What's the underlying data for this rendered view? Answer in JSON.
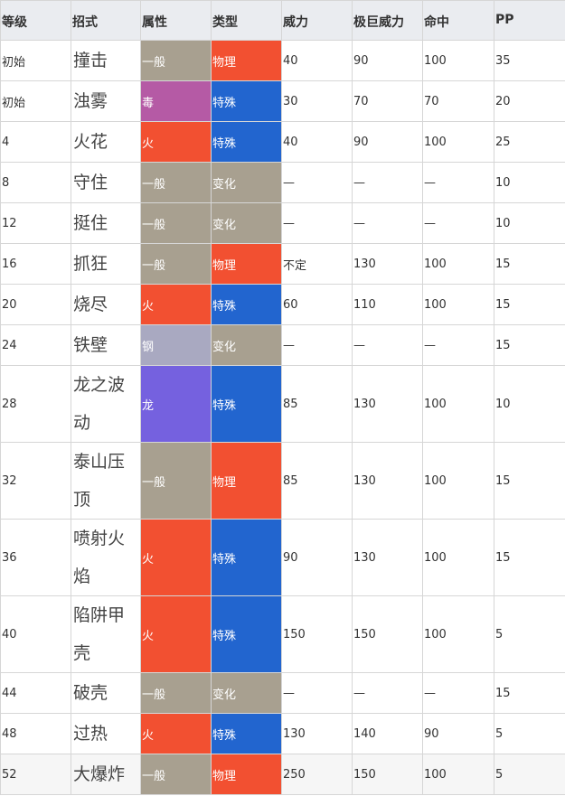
{
  "headers": [
    "等级",
    "招式",
    "属性",
    "类型",
    "威力",
    "极巨威力",
    "命中",
    "PP"
  ],
  "rows": [
    {
      "level": "初始",
      "move": "撞击",
      "type": "一般",
      "type_key": "normal",
      "category": "物理",
      "cat_key": "physical",
      "power": "40",
      "max_power": "90",
      "accuracy": "100",
      "pp": "35"
    },
    {
      "level": "初始",
      "move": "浊雾",
      "type": "毒",
      "type_key": "poison",
      "category": "特殊",
      "cat_key": "special",
      "power": "30",
      "max_power": "70",
      "accuracy": "70",
      "pp": "20"
    },
    {
      "level": "4",
      "move": "火花",
      "type": "火",
      "type_key": "fire",
      "category": "特殊",
      "cat_key": "special",
      "power": "40",
      "max_power": "90",
      "accuracy": "100",
      "pp": "25"
    },
    {
      "level": "8",
      "move": "守住",
      "type": "一般",
      "type_key": "normal",
      "category": "变化",
      "cat_key": "status",
      "power": "—",
      "max_power": "—",
      "accuracy": "—",
      "pp": "10"
    },
    {
      "level": "12",
      "move": "挺住",
      "type": "一般",
      "type_key": "normal",
      "category": "变化",
      "cat_key": "status",
      "power": "—",
      "max_power": "—",
      "accuracy": "—",
      "pp": "10"
    },
    {
      "level": "16",
      "move": "抓狂",
      "type": "一般",
      "type_key": "normal",
      "category": "物理",
      "cat_key": "physical",
      "power": "不定",
      "max_power": "130",
      "accuracy": "100",
      "pp": "15"
    },
    {
      "level": "20",
      "move": "烧尽",
      "type": "火",
      "type_key": "fire",
      "category": "特殊",
      "cat_key": "special",
      "power": "60",
      "max_power": "110",
      "accuracy": "100",
      "pp": "15"
    },
    {
      "level": "24",
      "move": "铁壁",
      "type": "钢",
      "type_key": "steel",
      "category": "变化",
      "cat_key": "status",
      "power": "—",
      "max_power": "—",
      "accuracy": "—",
      "pp": "15"
    },
    {
      "level": "28",
      "move": "龙之波动",
      "type": "龙",
      "type_key": "dragon",
      "category": "特殊",
      "cat_key": "special",
      "power": "85",
      "max_power": "130",
      "accuracy": "100",
      "pp": "10"
    },
    {
      "level": "32",
      "move": "泰山压顶",
      "type": "一般",
      "type_key": "normal",
      "category": "物理",
      "cat_key": "physical",
      "power": "85",
      "max_power": "130",
      "accuracy": "100",
      "pp": "15"
    },
    {
      "level": "36",
      "move": "喷射火焰",
      "type": "火",
      "type_key": "fire",
      "category": "特殊",
      "cat_key": "special",
      "power": "90",
      "max_power": "130",
      "accuracy": "100",
      "pp": "15"
    },
    {
      "level": "40",
      "move": "陷阱甲壳",
      "type": "火",
      "type_key": "fire",
      "category": "特殊",
      "cat_key": "special",
      "power": "150",
      "max_power": "150",
      "accuracy": "100",
      "pp": "5"
    },
    {
      "level": "44",
      "move": "破壳",
      "type": "一般",
      "type_key": "normal",
      "category": "变化",
      "cat_key": "status",
      "power": "—",
      "max_power": "—",
      "accuracy": "—",
      "pp": "15"
    },
    {
      "level": "48",
      "move": "过热",
      "type": "火",
      "type_key": "fire",
      "category": "特殊",
      "cat_key": "special",
      "power": "130",
      "max_power": "140",
      "accuracy": "90",
      "pp": "5"
    },
    {
      "level": "52",
      "move": "大爆炸",
      "type": "一般",
      "type_key": "normal",
      "category": "物理",
      "cat_key": "physical",
      "power": "250",
      "max_power": "150",
      "accuracy": "100",
      "pp": "5"
    }
  ]
}
